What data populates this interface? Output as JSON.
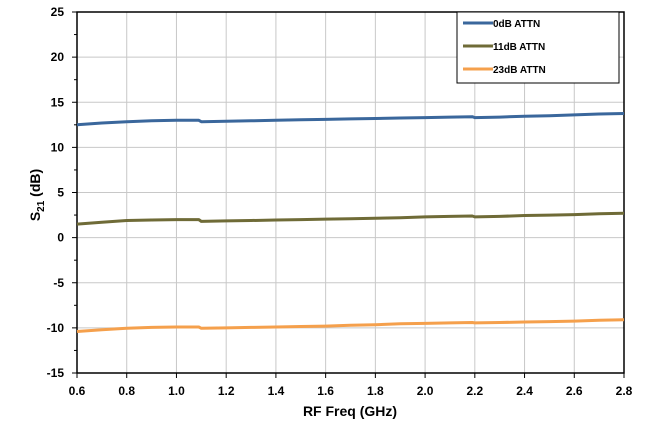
{
  "chart_data": {
    "type": "line",
    "xlabel": "RF Freq (GHz)",
    "ylabel": {
      "base": "S",
      "sub": "21",
      "rest": " (dB)"
    },
    "xlim": [
      0.6,
      2.8
    ],
    "ylim": [
      -15,
      25
    ],
    "xticks": [
      "0.6",
      "0.8",
      "1.0",
      "1.2",
      "1.4",
      "1.6",
      "1.8",
      "2.0",
      "2.2",
      "2.4",
      "2.6",
      "2.8"
    ],
    "yticks": [
      "-15",
      "-10",
      "-5",
      "0",
      "5",
      "10",
      "15",
      "20",
      "25"
    ],
    "grid": true,
    "legend_position": "top-right",
    "x": [
      0.6,
      0.7,
      0.8,
      0.9,
      1.0,
      1.09,
      1.1,
      1.2,
      1.3,
      1.4,
      1.5,
      1.6,
      1.7,
      1.8,
      1.9,
      2.0,
      2.1,
      2.19,
      2.2,
      2.3,
      2.4,
      2.5,
      2.6,
      2.7,
      2.8
    ],
    "series": [
      {
        "name": "0dB ATTN",
        "color": "#3A679C",
        "values": [
          12.5,
          12.7,
          12.85,
          12.95,
          13.0,
          13.0,
          12.85,
          12.9,
          12.95,
          13.0,
          13.05,
          13.1,
          13.15,
          13.2,
          13.25,
          13.3,
          13.35,
          13.4,
          13.3,
          13.35,
          13.45,
          13.5,
          13.6,
          13.7,
          13.75
        ]
      },
      {
        "name": "11dB ATTN",
        "color": "#6F6B37",
        "values": [
          1.5,
          1.7,
          1.9,
          1.95,
          2.0,
          2.0,
          1.8,
          1.85,
          1.9,
          1.95,
          2.0,
          2.05,
          2.1,
          2.15,
          2.2,
          2.3,
          2.35,
          2.4,
          2.3,
          2.35,
          2.45,
          2.5,
          2.55,
          2.65,
          2.7
        ]
      },
      {
        "name": "23dB ATTN",
        "color": "#F5A04C",
        "values": [
          -10.4,
          -10.2,
          -10.05,
          -9.95,
          -9.9,
          -9.9,
          -10.05,
          -10.0,
          -9.95,
          -9.9,
          -9.85,
          -9.8,
          -9.7,
          -9.65,
          -9.55,
          -9.5,
          -9.45,
          -9.4,
          -9.45,
          -9.4,
          -9.35,
          -9.3,
          -9.25,
          -9.15,
          -9.1
        ]
      }
    ]
  }
}
